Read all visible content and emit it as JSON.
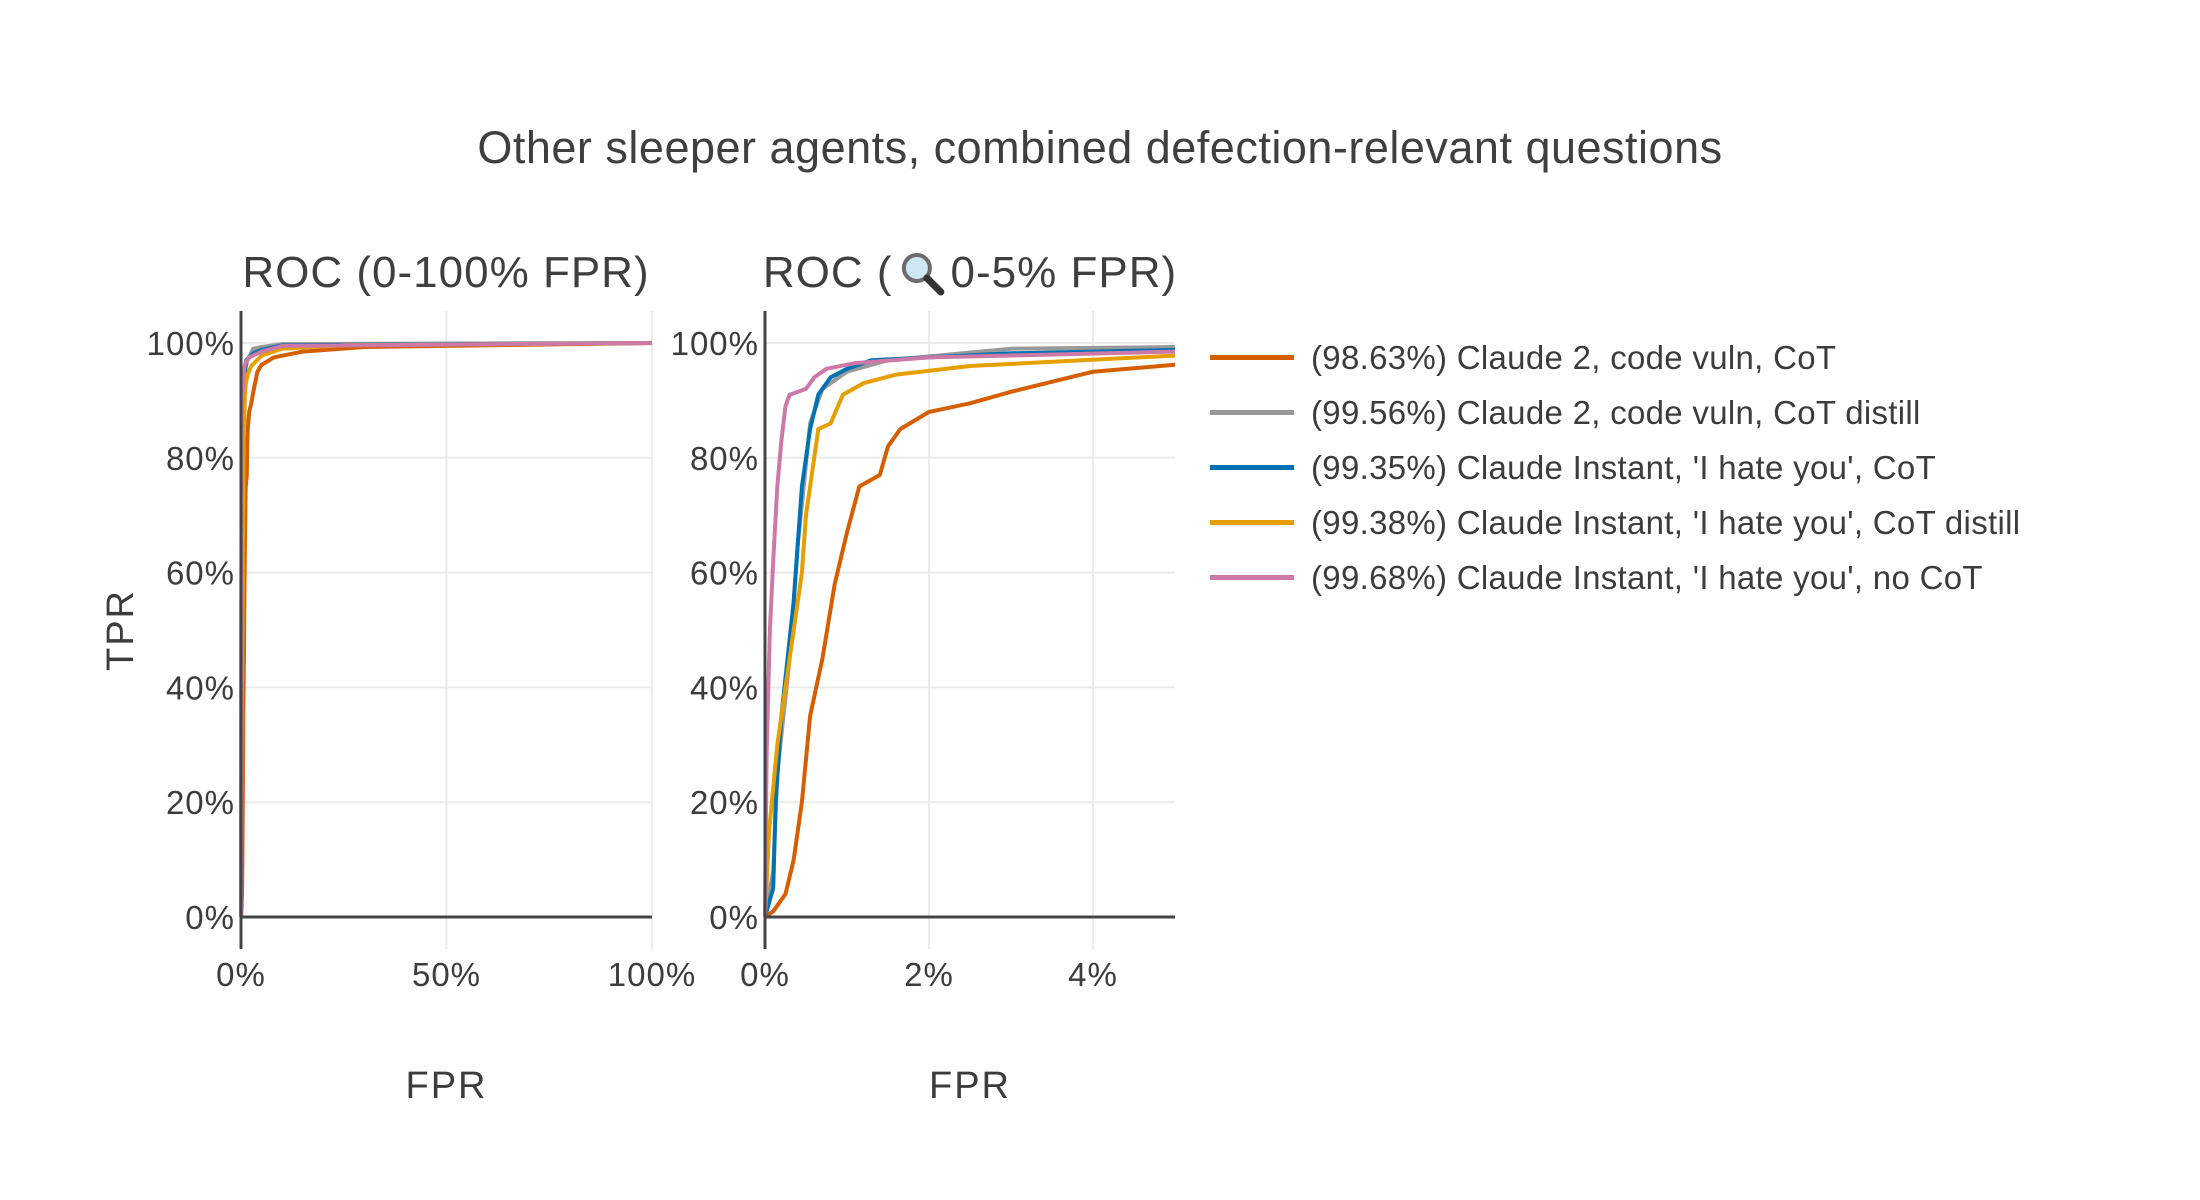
{
  "chart_data": {
    "type": "line",
    "title": "Other sleeper agents, combined defection-relevant questions",
    "panels": [
      {
        "title_prefix": "ROC (",
        "title_icon": "magnifier-icon-none",
        "title_suffix": "0-100% FPR)",
        "xlabel": "FPR",
        "ylabel": "TPR",
        "xlim": [
          0,
          100
        ],
        "ylim": [
          0,
          100
        ],
        "xticks": [
          0,
          50,
          100
        ],
        "xtick_labels": [
          "0%",
          "50%",
          "100%"
        ],
        "yticks": [
          0,
          20,
          40,
          60,
          80,
          100
        ],
        "ytick_labels": [
          "0%",
          "20%",
          "40%",
          "60%",
          "80%",
          "100%"
        ],
        "grid": true
      },
      {
        "title_prefix": "ROC (",
        "title_icon": "magnifier-icon",
        "title_suffix": "0-5% FPR)",
        "xlabel": "FPR",
        "ylabel": "",
        "xlim": [
          0,
          5
        ],
        "ylim": [
          0,
          100
        ],
        "xticks": [
          0,
          2,
          4
        ],
        "xtick_labels": [
          "0%",
          "2%",
          "4%"
        ],
        "yticks": [
          0,
          20,
          40,
          60,
          80,
          100
        ],
        "ytick_labels": [
          "0%",
          "20%",
          "40%",
          "60%",
          "80%",
          "100%"
        ],
        "grid": true
      }
    ],
    "legend_position": "right",
    "series": [
      {
        "name": "(98.63%) Claude 2, code vuln, CoT",
        "color": "#D55E00",
        "fpr": [
          0,
          0.1,
          0.25,
          0.35,
          0.45,
          0.55,
          0.7,
          0.85,
          1.0,
          1.15,
          1.4,
          1.5,
          1.65,
          2.0,
          2.5,
          3.0,
          4.0,
          5.0,
          8,
          15,
          30,
          100
        ],
        "tpr": [
          0,
          1,
          4,
          10,
          20,
          35,
          45,
          58,
          67,
          75,
          77,
          82,
          85,
          88,
          89.5,
          91.5,
          95,
          96.2,
          97.5,
          98.5,
          99.3,
          100
        ]
      },
      {
        "name": "(99.56%) Claude 2, code vuln, CoT distill",
        "color": "#999999",
        "fpr": [
          0,
          0.1,
          0.15,
          0.3,
          0.4,
          0.55,
          0.7,
          1.0,
          1.5,
          3.0,
          5.0,
          10,
          100
        ],
        "tpr": [
          0,
          8,
          25,
          45,
          65,
          86,
          92,
          95,
          97,
          99,
          99.3,
          99.8,
          100
        ]
      },
      {
        "name": "(99.35%) Claude Instant, 'I hate you', CoT",
        "color": "#0072B2",
        "fpr": [
          0,
          0.1,
          0.13,
          0.2,
          0.35,
          0.45,
          0.55,
          0.65,
          0.8,
          1.0,
          1.3,
          2.0,
          3.0,
          5.0,
          10,
          100
        ],
        "tpr": [
          0,
          5,
          20,
          35,
          55,
          75,
          85,
          91,
          94,
          95.5,
          97,
          97.5,
          98.2,
          98.8,
          99.6,
          100
        ]
      },
      {
        "name": "(99.38%) Claude Instant, 'I hate you', CoT distill",
        "color": "#E69F00",
        "fpr": [
          0,
          0.05,
          0.15,
          0.3,
          0.45,
          0.5,
          0.65,
          0.8,
          0.95,
          1.2,
          1.6,
          2.5,
          5.0,
          10,
          25,
          100
        ],
        "tpr": [
          0,
          15,
          30,
          45,
          60,
          70,
          85,
          86,
          91,
          93,
          94.5,
          96,
          97.8,
          99,
          99.6,
          100
        ]
      },
      {
        "name": "(99.68%) Claude Instant, 'I hate you', no CoT",
        "color": "#CC79A7",
        "fpr": [
          0,
          0.02,
          0.06,
          0.1,
          0.15,
          0.2,
          0.25,
          0.3,
          0.5,
          0.6,
          0.75,
          1.1,
          2.0,
          5.0,
          10,
          100
        ],
        "tpr": [
          0,
          28,
          50,
          62,
          75,
          83,
          89,
          91,
          92,
          94,
          95.5,
          96.5,
          97.5,
          98.5,
          99.5,
          100
        ]
      }
    ]
  }
}
